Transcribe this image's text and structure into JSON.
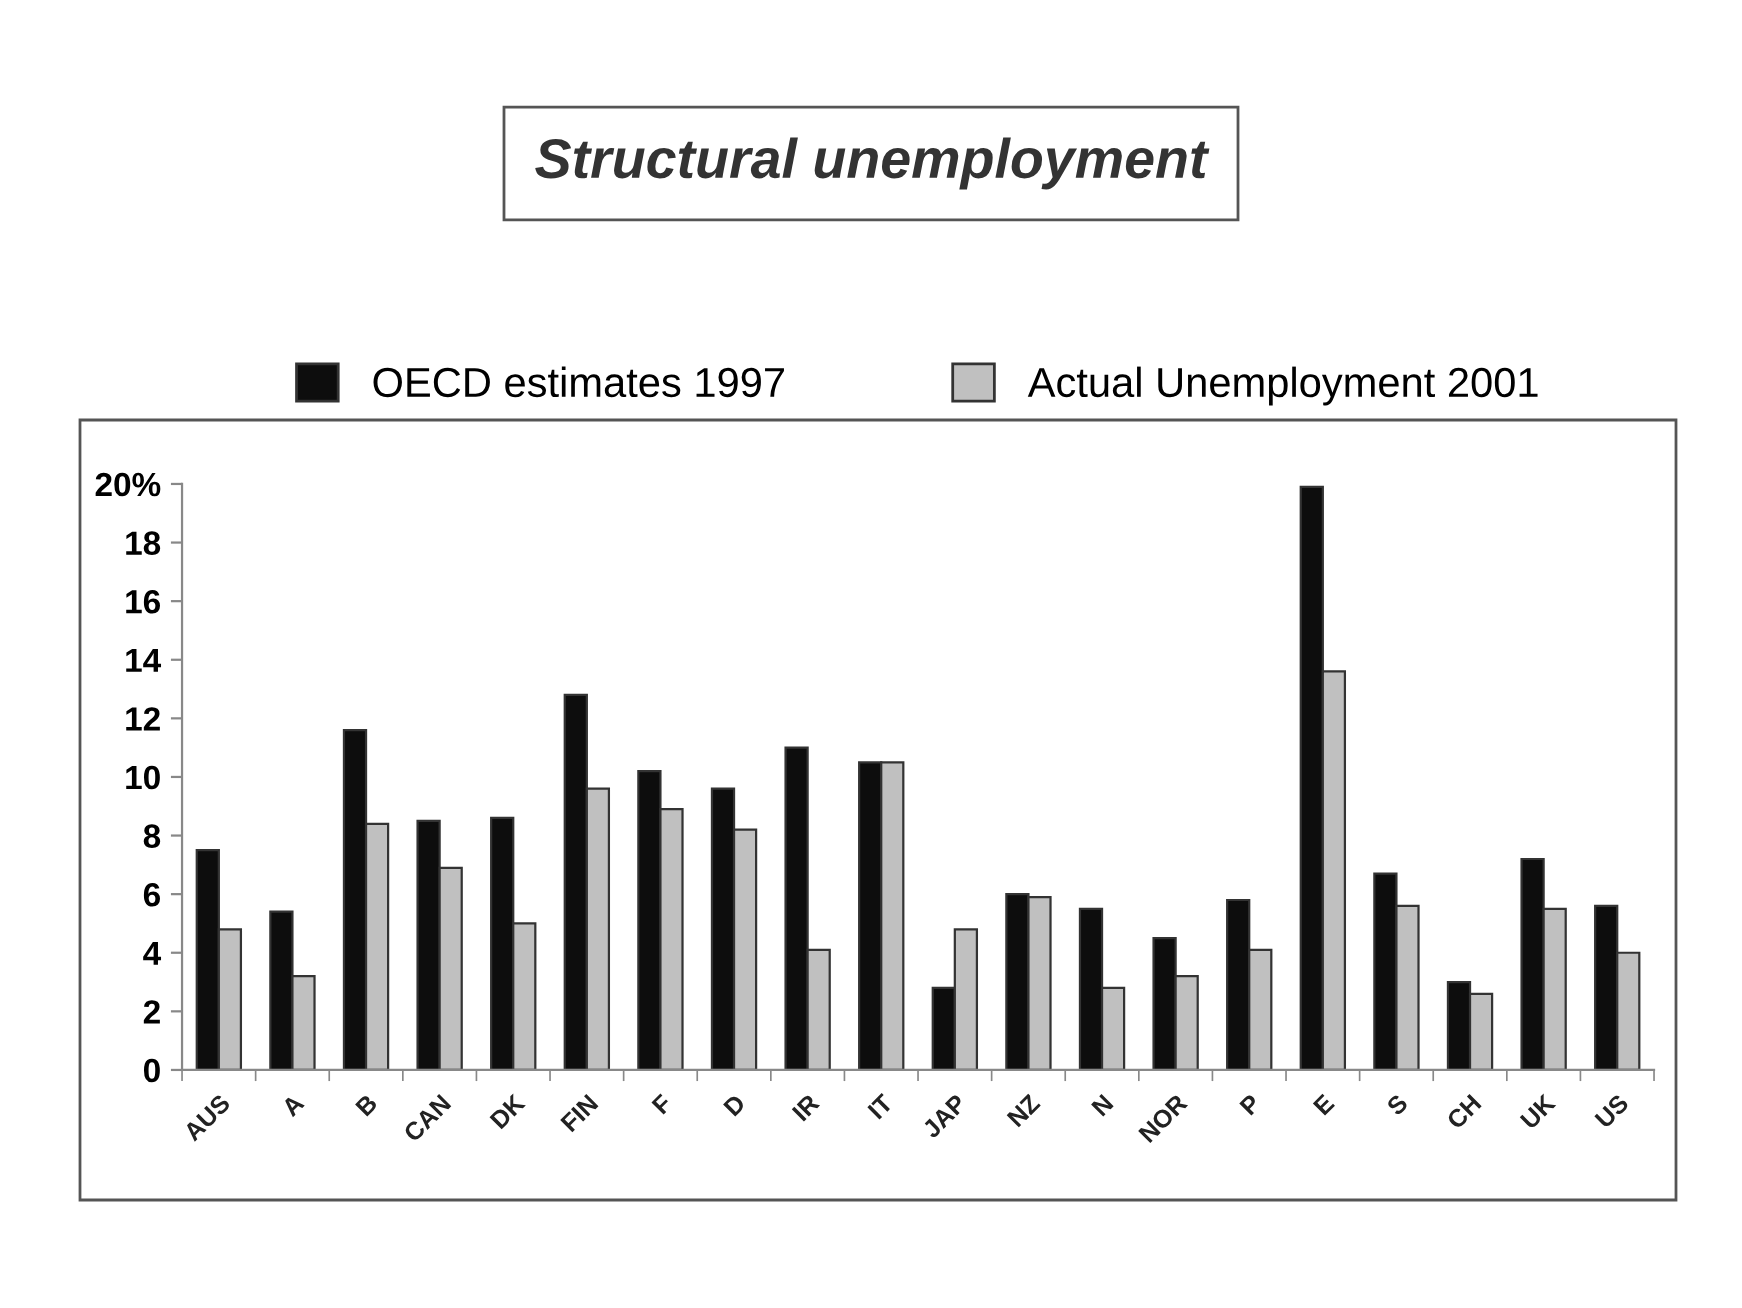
{
  "chart_data": {
    "type": "bar",
    "title": "Structural unemployment",
    "categories": [
      "AUS",
      "A",
      "B",
      "CAN",
      "DK",
      "FIN",
      "F",
      "D",
      "IR",
      "IT",
      "JAP",
      "NZ",
      "N",
      "NOR",
      "P",
      "E",
      "S",
      "CH",
      "UK",
      "US"
    ],
    "series": [
      {
        "name": "OECD estimates 1997",
        "color": "#0d0d0d",
        "values": [
          7.5,
          5.4,
          11.6,
          8.5,
          8.6,
          12.8,
          10.2,
          9.6,
          11.0,
          10.5,
          2.8,
          6.0,
          5.5,
          4.5,
          5.8,
          19.9,
          6.7,
          3.0,
          7.2,
          5.6
        ]
      },
      {
        "name": "Actual Unemployment 2001",
        "color": "#c0c0c0",
        "values": [
          4.8,
          3.2,
          8.4,
          6.9,
          5.0,
          9.6,
          8.9,
          8.2,
          4.1,
          10.5,
          4.8,
          5.9,
          2.8,
          3.2,
          4.1,
          13.6,
          5.6,
          2.6,
          5.5,
          4.0
        ]
      }
    ],
    "ylim": [
      0,
      20
    ],
    "yticks": [
      0,
      2,
      4,
      6,
      8,
      10,
      12,
      14,
      16,
      18,
      {
        "value": 20,
        "label": "20%"
      }
    ],
    "grid": false,
    "legend": "top"
  }
}
